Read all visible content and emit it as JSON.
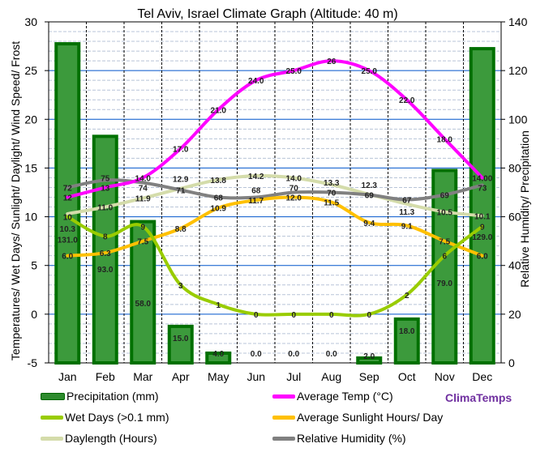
{
  "chart_data": {
    "type": "bar+line",
    "title": "Tel Aviv, Israel Climate Graph (Altitude: 40 m)",
    "ylabel_left": "Temperatures/ Wet Days/ Sunlight/ Daylight/ Wind Speed/ Frost",
    "ylabel_right": "Relative Humidity/ Precipitation",
    "ylim_left": [
      -5,
      30
    ],
    "yticks_left": [
      -5,
      0,
      5,
      10,
      15,
      20,
      25,
      30
    ],
    "ylim_right": [
      0,
      140
    ],
    "yticks_right": [
      0,
      20,
      40,
      60,
      80,
      100,
      120,
      140
    ],
    "grid": true,
    "legend_position": "bottom",
    "categories": [
      "Jan",
      "Feb",
      "Mar",
      "Apr",
      "May",
      "Jun",
      "Jul",
      "Aug",
      "Sep",
      "Oct",
      "Nov",
      "Dec"
    ],
    "series": [
      {
        "name": "Precipitation (mm)",
        "type": "bar",
        "axis": "right",
        "color": "#2e8b2e",
        "values": [
          131.0,
          93.0,
          58.0,
          15.0,
          4.0,
          0.0,
          0.0,
          0.0,
          2.0,
          18.0,
          79.0,
          129.0
        ],
        "labels": [
          "131.0",
          "93.0",
          "58.0",
          "15.0",
          "4.0",
          "0.0",
          "0.0",
          "0.0",
          "2.0",
          "18.0",
          "79.0",
          "129.0"
        ]
      },
      {
        "name": "Daylength (Hours)",
        "type": "line",
        "axis": "left",
        "color": "#d4dcaa",
        "values": [
          10.3,
          11.0,
          11.9,
          12.9,
          13.8,
          14.2,
          14.0,
          13.3,
          12.3,
          11.3,
          10.5,
          10.1
        ],
        "labels": [
          "10.3",
          "11.0",
          "11.9",
          "12.9",
          "13.8",
          "14.2",
          "14.0",
          "13.3",
          "12.3",
          "11.3",
          "10.5",
          "10.1"
        ]
      },
      {
        "name": "Relative Humidity (%)",
        "type": "line",
        "axis": "right",
        "color": "#808080",
        "values": [
          72,
          75,
          74,
          71,
          68,
          68,
          70,
          70,
          69,
          67,
          69,
          73
        ],
        "labels": [
          "72",
          "75",
          "74",
          "71",
          "68",
          "68",
          "70",
          "70",
          "69",
          "67",
          "69",
          "73"
        ]
      },
      {
        "name": "Average Sunlight Hours/ Day",
        "type": "line",
        "axis": "left",
        "color": "#ffc000",
        "values": [
          6.0,
          6.3,
          7.5,
          8.8,
          10.9,
          11.7,
          12.0,
          11.5,
          9.4,
          9.1,
          7.5,
          6.0
        ],
        "labels": [
          "6.0",
          "6.3",
          "7.5",
          "8.8",
          "10.9",
          "11.7",
          "12.0",
          "11.5",
          "9.4",
          "9.1",
          "7.5",
          "6.0"
        ]
      },
      {
        "name": "Wet Days (>0.1 mm)",
        "type": "line",
        "axis": "left",
        "color": "#99cc00",
        "values": [
          10,
          8,
          9,
          3,
          1,
          0,
          0,
          0,
          0,
          2,
          6,
          9
        ],
        "labels": [
          "10",
          "8",
          "9",
          "3",
          "1",
          "0",
          "0",
          "0",
          "0",
          "2",
          "6",
          "9"
        ]
      },
      {
        "name": "Average Temp (°C)",
        "type": "line",
        "axis": "left",
        "color": "#ff00ff",
        "values": [
          12,
          13,
          14.0,
          17.0,
          21.0,
          24.0,
          25.0,
          26,
          25.0,
          22.0,
          18.0,
          14.0
        ],
        "labels": [
          "12",
          "13",
          "14.0",
          "17.0",
          "21.0",
          "24.0",
          "25.0",
          "26",
          "25.0",
          "22.0",
          "18.0",
          "14.00"
        ]
      }
    ]
  },
  "brand": "ClimaTemps"
}
